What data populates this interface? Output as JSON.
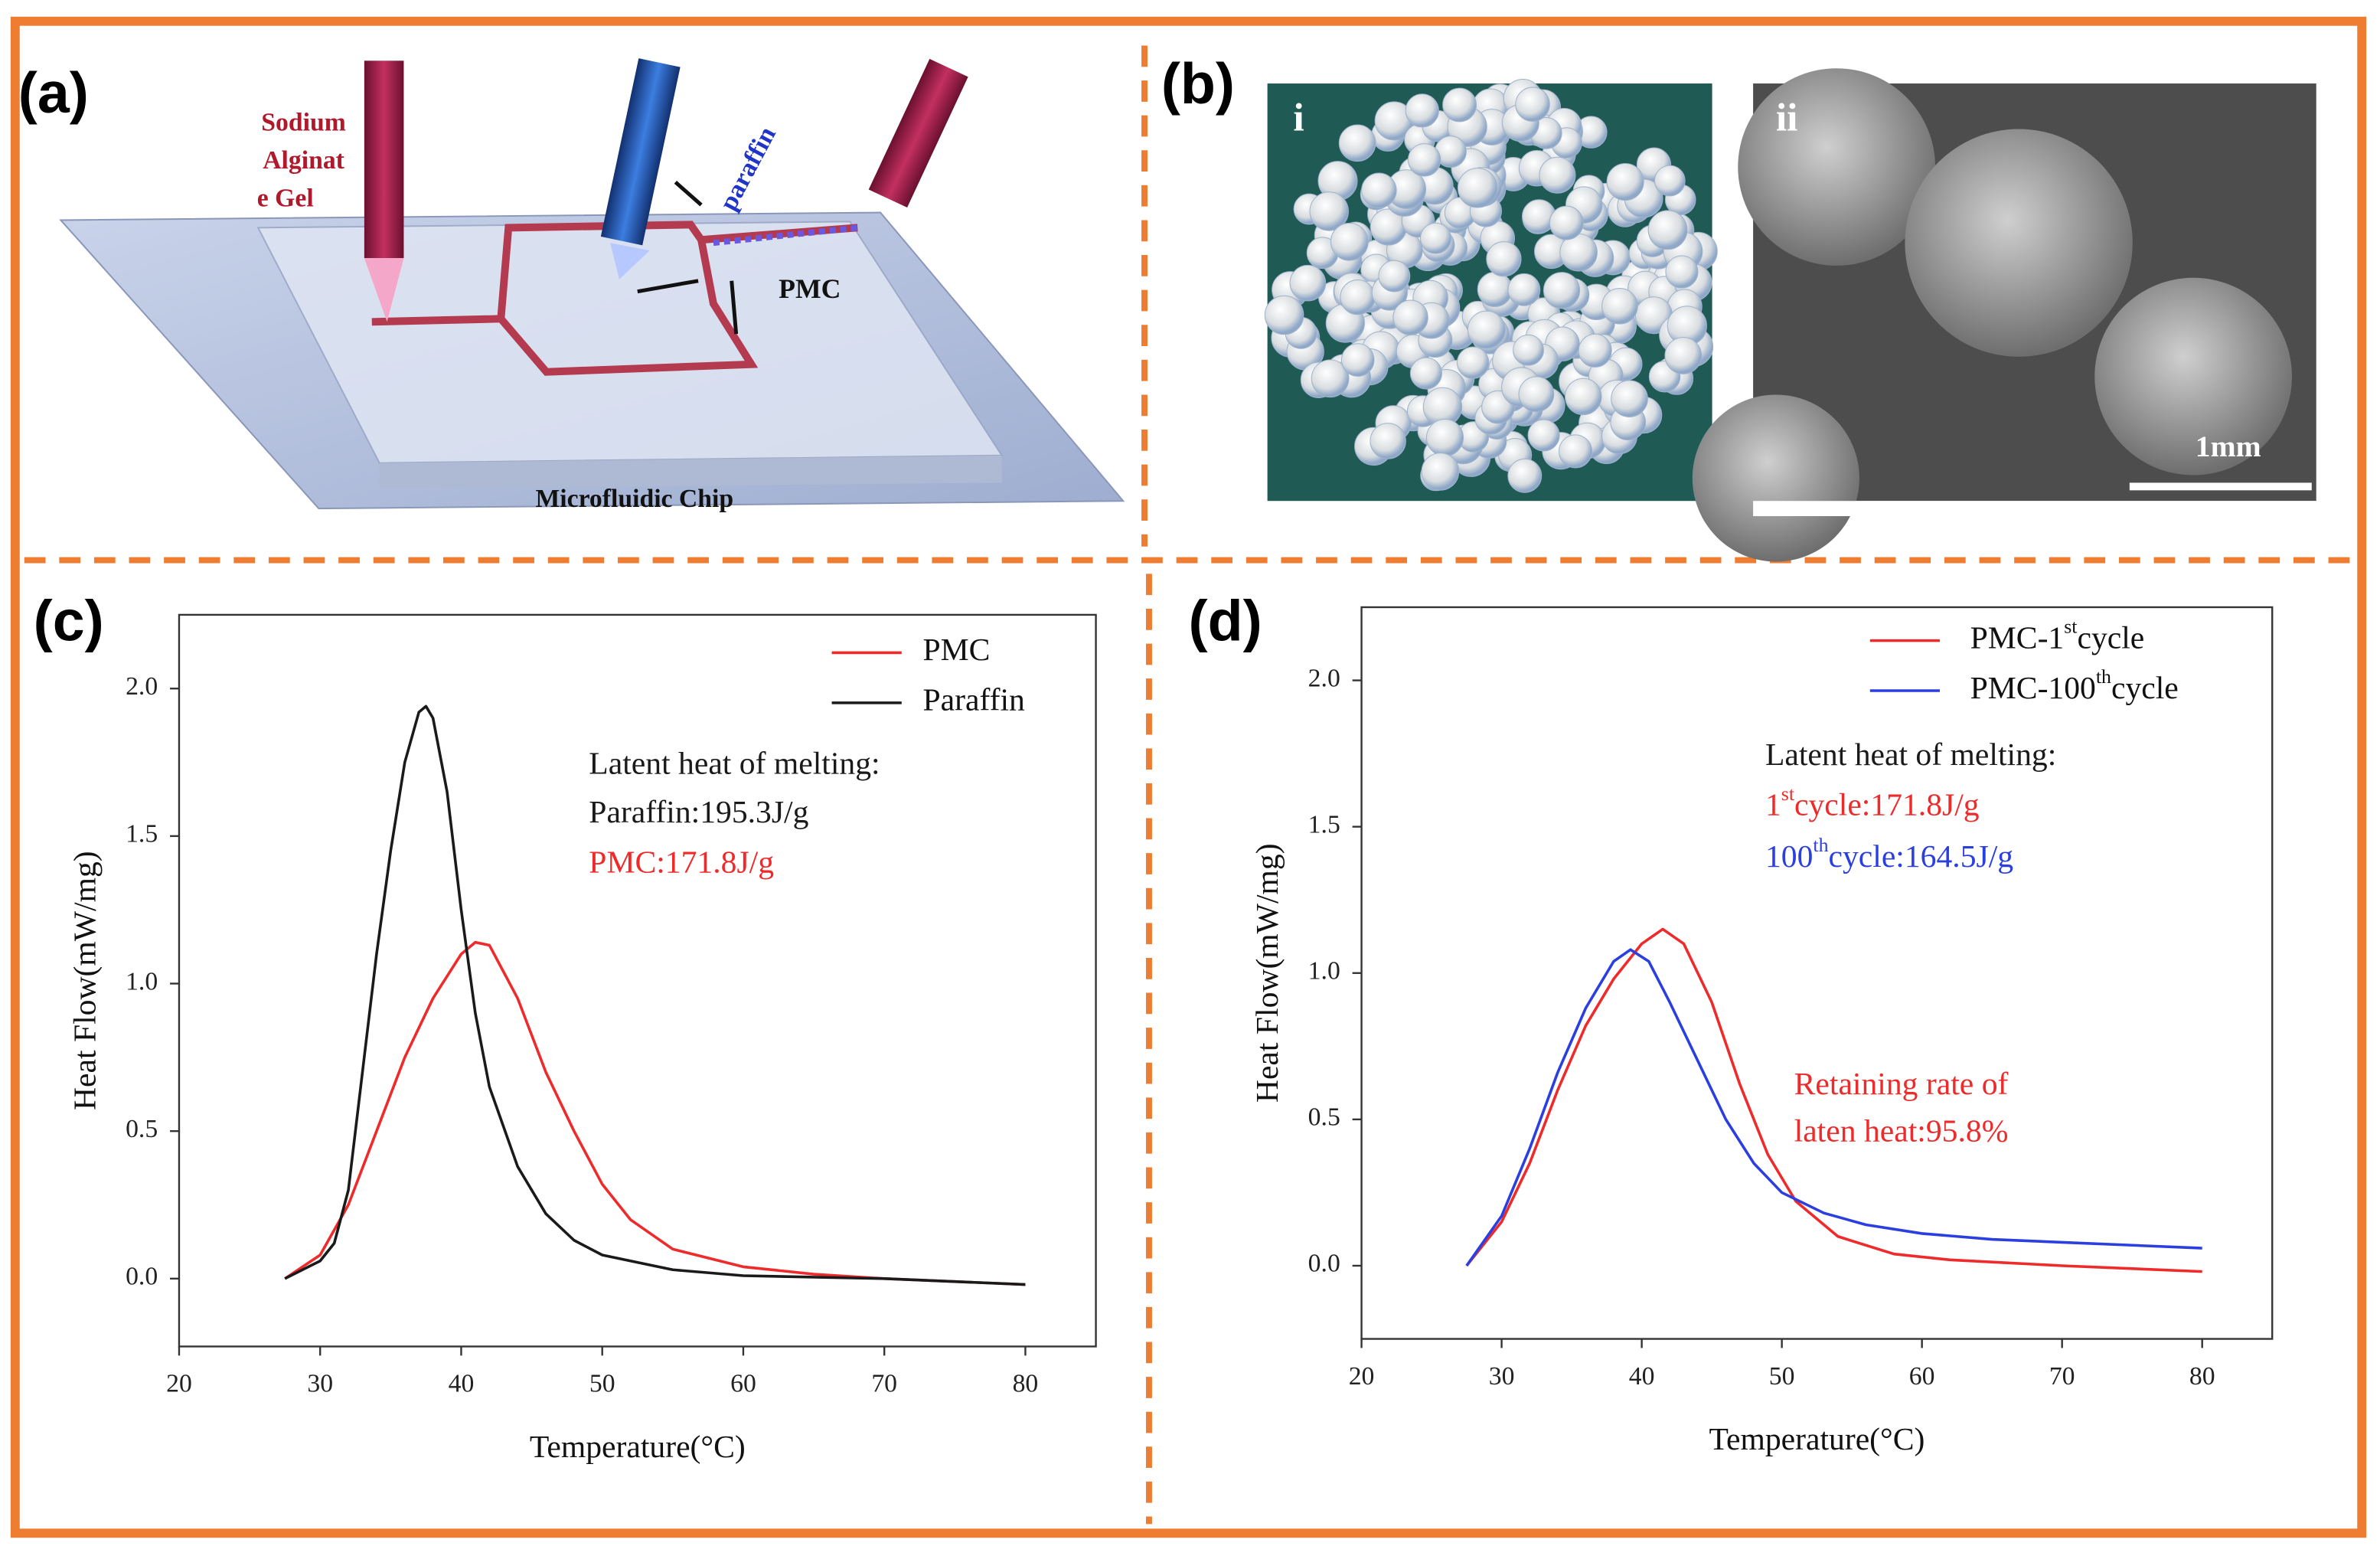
{
  "panels": {
    "a": {
      "label": "(a)",
      "sodium": [
        "Sodium",
        "Alginat",
        "e Gel"
      ],
      "paraffin": "paraffin",
      "pmc": "PMC",
      "chip": "Microfluidic Chip"
    },
    "b": {
      "label": "(b)",
      "i": "i",
      "ii": "ii",
      "scale": "1mm"
    }
  },
  "chart_data": [
    {
      "type": "line",
      "label": "(c)",
      "xlabel": "Temperature(°C)",
      "ylabel": "Heat Flow(mW/mg)",
      "xlim": [
        20,
        85
      ],
      "xticks": [
        20,
        30,
        40,
        50,
        60,
        70,
        80
      ],
      "ylim": [
        -0.23,
        2.25
      ],
      "yticks": [
        {
          "value": 0,
          "label": "0.0"
        },
        0.5,
        {
          "value": 1,
          "label": "1.0"
        },
        1.5,
        {
          "value": 2,
          "label": "2.0"
        }
      ],
      "legend": "upper right",
      "series": [
        {
          "name": "PMC",
          "color": "#ee2a2a",
          "x": [
            27.5,
            30,
            32,
            34,
            36,
            38,
            40,
            41,
            42,
            44,
            46,
            48,
            50,
            52,
            55,
            60,
            65,
            70,
            75,
            80
          ],
          "values": [
            0,
            0.08,
            0.25,
            0.5,
            0.75,
            0.95,
            1.1,
            1.14,
            1.13,
            0.95,
            0.7,
            0.5,
            0.32,
            0.2,
            0.1,
            0.04,
            0.015,
            0,
            -0.01,
            -0.02
          ]
        },
        {
          "name": "Paraffin",
          "color": "#1a1a1a",
          "x": [
            27.5,
            30,
            31,
            32,
            33,
            34,
            35,
            36,
            37,
            37.5,
            38,
            39,
            40,
            41,
            42,
            44,
            46,
            48,
            50,
            55,
            60,
            70,
            80
          ],
          "values": [
            0,
            0.06,
            0.12,
            0.3,
            0.7,
            1.1,
            1.45,
            1.75,
            1.92,
            1.94,
            1.9,
            1.65,
            1.25,
            0.9,
            0.65,
            0.38,
            0.22,
            0.13,
            0.08,
            0.03,
            0.01,
            0,
            -0.02
          ]
        }
      ],
      "annotations": [
        {
          "text": "Latent heat of melting:",
          "color": "#1a1a1a"
        },
        {
          "text": "Paraffin:195.3J/g",
          "color": "#1a1a1a"
        },
        {
          "text": "PMC:171.8J/g",
          "color": "#ee2a2a"
        }
      ]
    },
    {
      "type": "line",
      "label": "(d)",
      "xlabel": "Temperature(°C)",
      "ylabel": "Heat Flow(mW/mg)",
      "xlim": [
        20,
        85
      ],
      "xticks": [
        20,
        30,
        40,
        50,
        60,
        70,
        80
      ],
      "ylim": [
        -0.25,
        2.25
      ],
      "yticks": [
        {
          "value": 0,
          "label": "0.0"
        },
        0.5,
        {
          "value": 1,
          "label": "1.0"
        },
        1.5,
        {
          "value": 2,
          "label": "2.0"
        }
      ],
      "legend": "upper right",
      "series": [
        {
          "name": "PMC-1stcycle",
          "color": "#ee2a2a",
          "x": [
            27.5,
            30,
            32,
            34,
            36,
            38,
            40,
            41.5,
            43,
            45,
            47,
            49,
            51,
            54,
            58,
            62,
            70,
            80
          ],
          "values": [
            0,
            0.15,
            0.35,
            0.6,
            0.82,
            0.98,
            1.1,
            1.15,
            1.1,
            0.9,
            0.62,
            0.38,
            0.22,
            0.1,
            0.04,
            0.02,
            0,
            -0.02
          ]
        },
        {
          "name": "PMC-100thcycle",
          "color": "#2b3fe0",
          "x": [
            27.5,
            30,
            32,
            34,
            36,
            38,
            39.2,
            40.5,
            42,
            44,
            46,
            48,
            50,
            53,
            56,
            60,
            65,
            70,
            80
          ],
          "values": [
            0,
            0.17,
            0.4,
            0.66,
            0.88,
            1.04,
            1.08,
            1.04,
            0.9,
            0.7,
            0.5,
            0.35,
            0.25,
            0.18,
            0.14,
            0.11,
            0.09,
            0.08,
            0.06
          ]
        }
      ],
      "annotations": [
        {
          "text": "Latent heat of melting:",
          "color": "#1a1a1a"
        },
        {
          "text": "1stcycle:171.8J/g",
          "color": "#ee2a2a"
        },
        {
          "text": "100thcycle:164.5J/g",
          "color": "#2b3fe0"
        },
        {
          "text": "Retaining rate of",
          "color": "#ee2a2a"
        },
        {
          "text": "laten heat:95.8%",
          "color": "#ee2a2a"
        }
      ]
    }
  ]
}
